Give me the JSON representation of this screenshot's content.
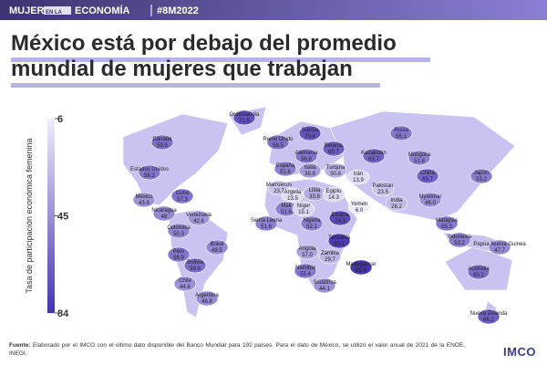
{
  "header": {
    "brand": [
      "MUJER",
      "EN LA",
      "ECONOMÍA"
    ],
    "hashtag": "#8M2022"
  },
  "title_lines": [
    "México está por debajo del promedio",
    "mundial de mujeres que trabajan"
  ],
  "chart_data": {
    "type": "choropleth",
    "categories": [
      "Groenlandia",
      "Canadá",
      "Reino Unido",
      "Suecia",
      "Rusia",
      "Belarús",
      "Alemania",
      "Kazajistán",
      "Mongolia",
      "Estados Unidos",
      "España",
      "Italia",
      "Turquía",
      "Irán",
      "China",
      "Japón",
      "Cuba",
      "Marruecos",
      "Argelia",
      "Libia",
      "Egipto",
      "Pakistán",
      "Yemen",
      "India",
      "Myanmar",
      "México",
      "Nicaragua",
      "Venezuela",
      "Malí",
      "Níger",
      "Etiopía",
      "Colombia",
      "Sierra Leona",
      "Nigeria",
      "Malaysia",
      "Indonesia",
      "Papúa Nueva Guinea",
      "Tanzania",
      "Angola",
      "Zambia",
      "Brasil",
      "Perú",
      "Bolivia",
      "Madagascar",
      "Namibia",
      "Sudáfrica",
      "Chile",
      "Australia",
      "Argentina",
      "Nueva Zelanda"
    ],
    "values": [
      71.5,
      59.5,
      58.5,
      70.4,
      55.1,
      65.7,
      56.8,
      63.7,
      51.8,
      56.2,
      51.6,
      39.8,
      30.8,
      13.9,
      63.7,
      53.2,
      57.3,
      23.7,
      13.5,
      33.8,
      14.3,
      23.5,
      6,
      26.2,
      46,
      43.6,
      48,
      42.6,
      51.6,
      15.1,
      74.3,
      50.3,
      51.6,
      52.1,
      55.3,
      53.2,
      47.7,
      80.1,
      37,
      29.7,
      49.5,
      56.9,
      59.6,
      83.6,
      55.4,
      44.1,
      44.6,
      60.2,
      46.8,
      65.2
    ],
    "value_labels": [
      "71.5",
      "59.5",
      "58.5",
      "70.4",
      "55.1",
      "65.7",
      "56.8",
      "63.7",
      "51.8",
      "56.2",
      "51.6",
      "39.8",
      "30.8",
      "13.9",
      "63.7",
      "53.2",
      "57.3",
      "23.7",
      "13.5",
      "33.8",
      "14.3",
      "23.5",
      "6.0",
      "26.2",
      "46.0",
      "43.6",
      "48",
      "42.6",
      "51.6",
      "15.1",
      "74.3",
      "50.3",
      "51.6",
      "52.1",
      "55.3",
      "53.2",
      "47.7",
      "80.1",
      "37.0",
      "29.7",
      "49.5",
      "56.9",
      "59.6",
      "83.6",
      "55.4",
      "44.1",
      "44.6",
      "60.2",
      "46.8",
      "65.2"
    ],
    "colorbar": {
      "label": "Tasa de participación económica femenina",
      "lim": [
        6,
        84
      ],
      "ticks": [
        6,
        45,
        84
      ],
      "colors": [
        "#f0eefc",
        "#4433b0"
      ]
    }
  },
  "footer": {
    "source_label": "Fuente:",
    "source_text": "Elaborado por el IMCO con el último dato disponible del Banco Mundial para 192 países. Para el dato de México, se utilizó el valor anual de 2021 de la ENOE, INEGI."
  },
  "logo": "IMCO"
}
